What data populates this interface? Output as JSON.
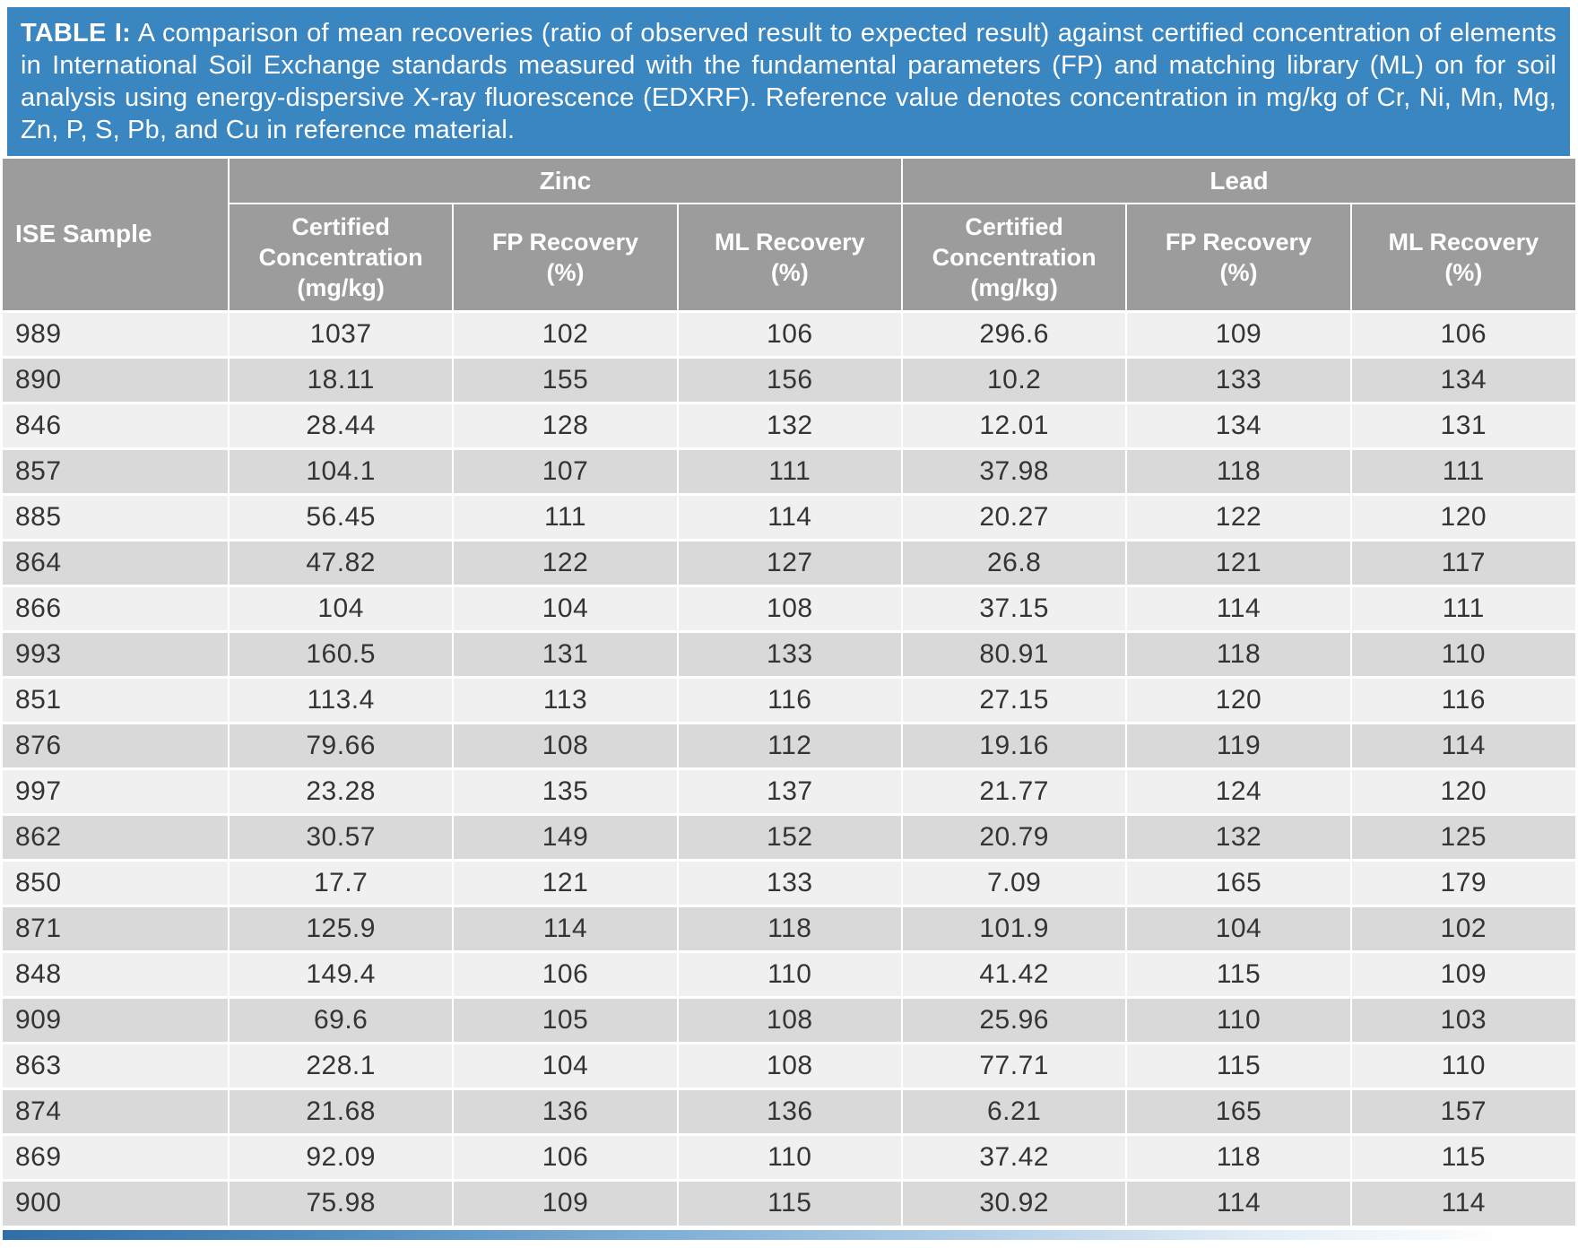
{
  "caption": {
    "label": "TABLE I:",
    "text": "A comparison of mean recoveries (ratio of observed result to expected result) against certified concentration of elements in International Soil Exchange standards measured with the fundamental parameters (FP) and matching library (ML) on for soil analysis using energy-dispersive X-ray fluorescence (EDXRF).  Reference value denotes concentration in mg/kg of Cr, Ni, Mn, Mg, Zn, P, S, Pb, and Cu in reference material."
  },
  "table": {
    "corner_header": "ISE Sample",
    "group_headers": [
      "Zinc",
      "Lead"
    ],
    "column_headers": [
      "Certified\nConcentration\n(mg/kg)",
      "FP Recovery\n(%)",
      "ML Recovery\n(%)",
      "Certified\nConcentration\n(mg/kg)",
      "FP Recovery\n(%)",
      "ML Recovery\n(%)"
    ],
    "rows": [
      [
        "989",
        "1037",
        "102",
        "106",
        "296.6",
        "109",
        "106"
      ],
      [
        "890",
        "18.11",
        "155",
        "156",
        "10.2",
        "133",
        "134"
      ],
      [
        "846",
        "28.44",
        "128",
        "132",
        "12.01",
        "134",
        "131"
      ],
      [
        "857",
        "104.1",
        "107",
        "111",
        "37.98",
        "118",
        "111"
      ],
      [
        "885",
        "56.45",
        "111",
        "114",
        "20.27",
        "122",
        "120"
      ],
      [
        "864",
        "47.82",
        "122",
        "127",
        "26.8",
        "121",
        "117"
      ],
      [
        "866",
        "104",
        "104",
        "108",
        "37.15",
        "114",
        "111"
      ],
      [
        "993",
        "160.5",
        "131",
        "133",
        "80.91",
        "118",
        "110"
      ],
      [
        "851",
        "113.4",
        "113",
        "116",
        "27.15",
        "120",
        "116"
      ],
      [
        "876",
        "79.66",
        "108",
        "112",
        "19.16",
        "119",
        "114"
      ],
      [
        "997",
        "23.28",
        "135",
        "137",
        "21.77",
        "124",
        "120"
      ],
      [
        "862",
        "30.57",
        "149",
        "152",
        "20.79",
        "132",
        "125"
      ],
      [
        "850",
        "17.7",
        "121",
        "133",
        "7.09",
        "165",
        "179"
      ],
      [
        "871",
        "125.9",
        "114",
        "118",
        "101.9",
        "104",
        "102"
      ],
      [
        "848",
        "149.4",
        "106",
        "110",
        "41.42",
        "115",
        "109"
      ],
      [
        "909",
        "69.6",
        "105",
        "108",
        "25.96",
        "110",
        "103"
      ],
      [
        "863",
        "228.1",
        "104",
        "108",
        "77.71",
        "115",
        "110"
      ],
      [
        "874",
        "21.68",
        "136",
        "136",
        "6.21",
        "165",
        "157"
      ],
      [
        "869",
        "92.09",
        "106",
        "110",
        "37.42",
        "118",
        "115"
      ],
      [
        "900",
        "75.98",
        "109",
        "115",
        "30.92",
        "114",
        "114"
      ]
    ]
  },
  "colors": {
    "caption_bar_blue": "#3a86c0",
    "header_gray": "#9c9c9c",
    "row_light": "#f0f0f0",
    "row_dark": "#d9d9d9",
    "text_dark": "#343434",
    "footer_gradient_start": "#2f6fa5",
    "footer_gradient_end": "#ffffff"
  }
}
